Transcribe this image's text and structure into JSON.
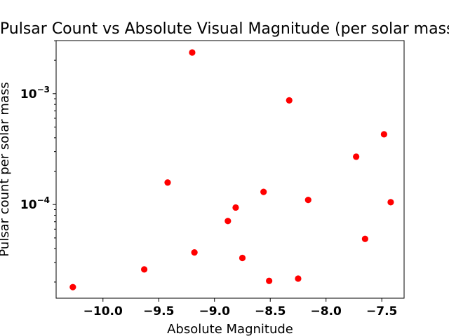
{
  "chart_data": {
    "type": "scatter",
    "title": "Pulsar Count vs Absolute Visual Magnitude (per solar mass)",
    "xlabel": "Absolute Magnitude",
    "ylabel": "Pulsar count per solar mass",
    "xlim": [
      -10.42,
      -7.3
    ],
    "ylim": [
      1.43e-05,
      0.00301
    ],
    "y_scale": "log",
    "grid": false,
    "legend": "none",
    "marker_color": "#ff0000",
    "x_ticks": [
      {
        "value": -10.0,
        "label": "−10.0"
      },
      {
        "value": -9.5,
        "label": "−9.5"
      },
      {
        "value": -9.0,
        "label": "−9.0"
      },
      {
        "value": -8.5,
        "label": "−8.5"
      },
      {
        "value": -8.0,
        "label": "−8.0"
      },
      {
        "value": -7.5,
        "label": "−7.5"
      }
    ],
    "y_ticks": [
      {
        "value": 0.0001,
        "base": "10",
        "exp": "−4"
      },
      {
        "value": 0.001,
        "base": "10",
        "exp": "−3"
      }
    ],
    "x": [
      -10.27,
      -9.63,
      -9.42,
      -9.2,
      -9.18,
      -8.88,
      -8.81,
      -8.75,
      -8.56,
      -8.51,
      -8.33,
      -8.25,
      -8.16,
      -7.73,
      -7.65,
      -7.48,
      -7.42
    ],
    "y": [
      1.8e-05,
      2.6e-05,
      0.000158,
      0.00235,
      3.7e-05,
      7.1e-05,
      9.4e-05,
      3.3e-05,
      0.00013,
      2.05e-05,
      0.00087,
      2.15e-05,
      0.00011,
      0.00027,
      4.9e-05,
      0.00043,
      0.000105
    ]
  }
}
